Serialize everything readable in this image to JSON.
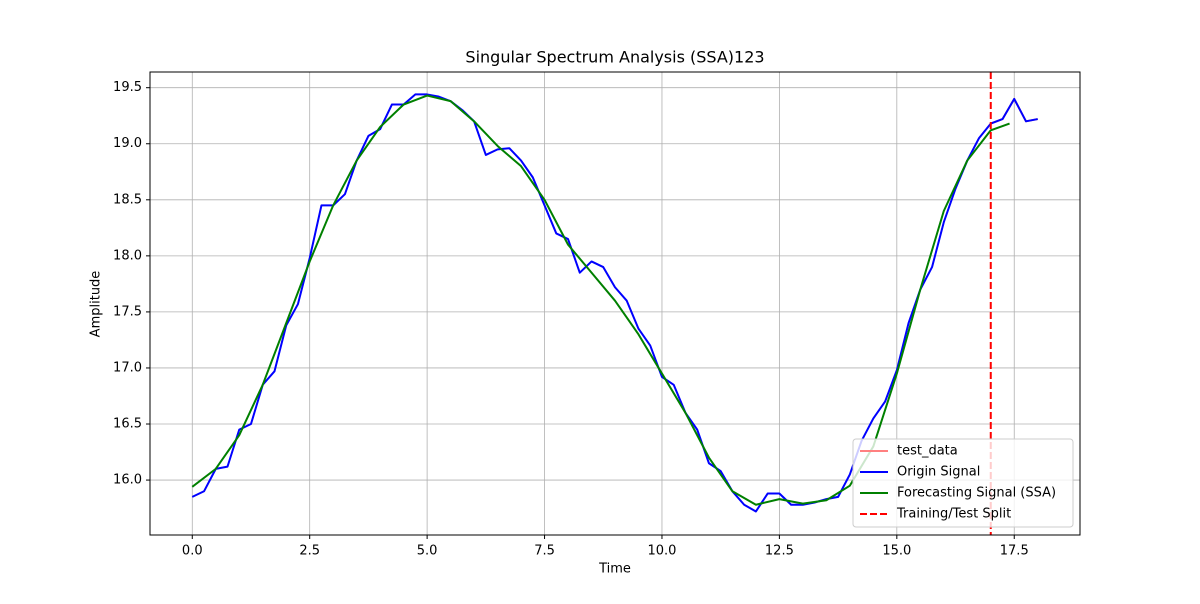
{
  "chart_data": {
    "type": "line",
    "title": "Singular Spectrum Analysis (SSA)123",
    "x_label": "Time",
    "y_label": "Amplitude",
    "xlim": [
      -0.9,
      18.9
    ],
    "ylim": [
      15.51,
      19.64
    ],
    "xticks": [
      {
        "value": 0,
        "label": "0.0"
      },
      2.5,
      {
        "value": 5,
        "label": "5.0"
      },
      7.5,
      {
        "value": 10,
        "label": "10.0"
      },
      12.5,
      {
        "value": 15,
        "label": "15.0"
      },
      17.5
    ],
    "yticks": [
      {
        "value": 16,
        "label": "16.0"
      },
      16.5,
      {
        "value": 17,
        "label": "17.0"
      },
      17.5,
      {
        "value": 18,
        "label": "18.0"
      },
      18.5,
      {
        "value": 19,
        "label": "19.0"
      },
      19.5
    ],
    "grid": true,
    "legend": "lower right",
    "series": [
      {
        "name": "test_data",
        "color": "#ff8080",
        "x": [
          17,
          17.25,
          17.5,
          17.75,
          18
        ],
        "values": [
          19.18,
          19.22,
          19.4,
          19.2,
          19.22
        ]
      },
      {
        "name": "Origin Signal",
        "color": "#0000ff",
        "x": [
          0,
          0.25,
          0.5,
          0.75,
          1,
          1.25,
          1.5,
          1.75,
          2,
          2.25,
          2.5,
          2.75,
          3,
          3.25,
          3.5,
          3.75,
          4,
          4.25,
          4.5,
          4.75,
          5,
          5.25,
          5.5,
          5.75,
          6,
          6.25,
          6.5,
          6.75,
          7,
          7.25,
          7.5,
          7.75,
          8,
          8.25,
          8.5,
          8.75,
          9,
          9.25,
          9.5,
          9.75,
          10,
          10.25,
          10.5,
          10.75,
          11,
          11.25,
          11.5,
          11.75,
          12,
          12.25,
          12.5,
          12.75,
          13,
          13.25,
          13.5,
          13.75,
          14,
          14.25,
          14.5,
          14.75,
          15,
          15.25,
          15.5,
          15.75,
          16,
          16.25,
          16.5,
          16.75,
          17,
          17.25,
          17.5,
          17.75,
          18
        ],
        "values": [
          15.85,
          15.9,
          16.1,
          16.12,
          16.45,
          16.5,
          16.85,
          16.97,
          17.38,
          17.57,
          17.98,
          18.45,
          18.45,
          18.55,
          18.85,
          19.07,
          19.13,
          19.35,
          19.35,
          19.44,
          19.44,
          19.42,
          19.38,
          19.3,
          19.2,
          18.9,
          18.95,
          18.96,
          18.85,
          18.7,
          18.45,
          18.2,
          18.15,
          17.85,
          17.95,
          17.9,
          17.72,
          17.6,
          17.35,
          17.2,
          16.92,
          16.85,
          16.6,
          16.45,
          16.15,
          16.08,
          15.9,
          15.78,
          15.72,
          15.88,
          15.88,
          15.78,
          15.78,
          15.8,
          15.83,
          15.85,
          16.05,
          16.35,
          16.55,
          16.7,
          16.98,
          17.4,
          17.7,
          17.9,
          18.3,
          18.6,
          18.85,
          19.05,
          19.18,
          19.22,
          19.4,
          19.2,
          19.22
        ]
      },
      {
        "name": "Forecasting Signal (SSA)",
        "color": "#008000",
        "x": [
          0,
          0.5,
          1,
          1.5,
          2,
          2.5,
          3,
          3.5,
          4,
          4.5,
          5,
          5.5,
          6,
          6.5,
          7,
          7.5,
          8,
          8.5,
          9,
          9.5,
          10,
          10.5,
          11,
          11.5,
          12,
          12.5,
          13,
          13.5,
          14,
          14.5,
          15,
          15.5,
          16,
          16.5,
          17,
          17.4
        ],
        "values": [
          15.94,
          16.1,
          16.4,
          16.85,
          17.4,
          17.95,
          18.45,
          18.85,
          19.15,
          19.35,
          19.43,
          19.38,
          19.2,
          18.98,
          18.8,
          18.5,
          18.1,
          17.85,
          17.6,
          17.3,
          16.95,
          16.6,
          16.2,
          15.9,
          15.78,
          15.83,
          15.79,
          15.82,
          15.95,
          16.3,
          16.95,
          17.7,
          18.4,
          18.85,
          19.12,
          19.18
        ]
      }
    ],
    "split": {
      "name": "Training/Test Split",
      "x": 17,
      "color": "#ff0000"
    }
  }
}
